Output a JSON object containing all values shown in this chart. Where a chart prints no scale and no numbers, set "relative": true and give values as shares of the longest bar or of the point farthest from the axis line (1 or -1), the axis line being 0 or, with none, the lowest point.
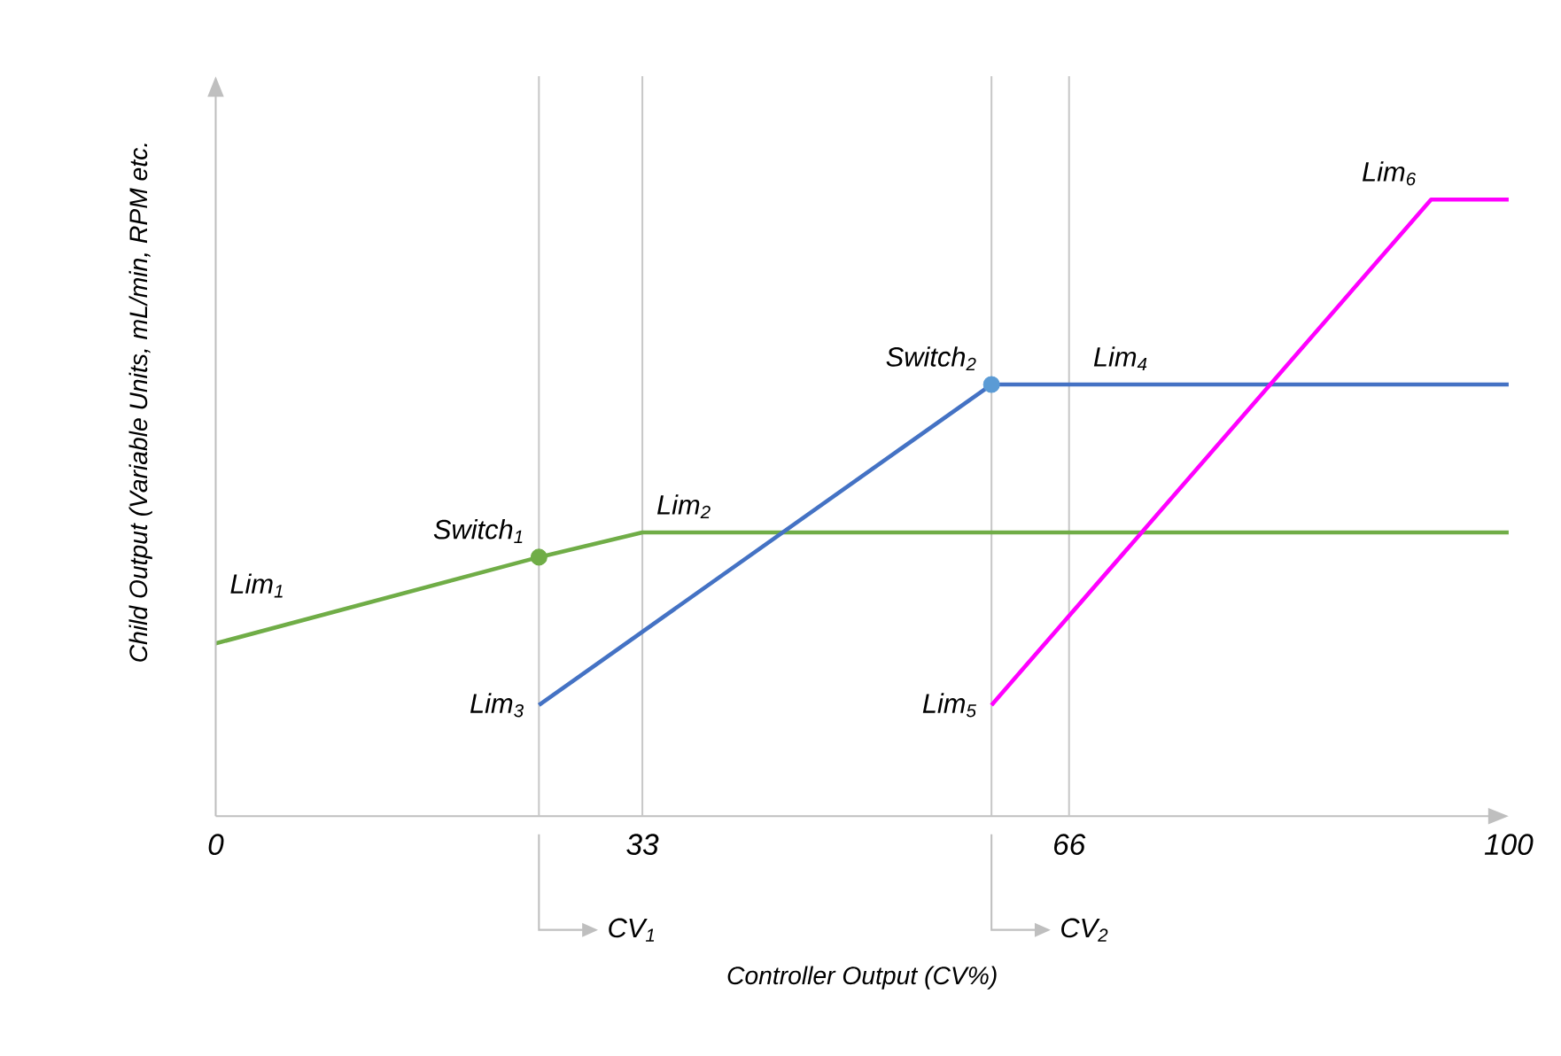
{
  "chart_data": {
    "type": "line",
    "relative": true,
    "xlabel": "Controller Output (CV%)",
    "ylabel": "Child Output (Variable Units, mL/min, RPM etc.",
    "xlim": [
      0,
      100
    ],
    "xticks": [
      0,
      33,
      66,
      100
    ],
    "tick_labels": "x",
    "grid": false,
    "series": [
      {
        "marker": "none",
        "color": "#70ad47",
        "x": [
          0,
          25,
          33,
          100
        ],
        "values": [
          0.28,
          0.42,
          0.46,
          0.46
        ]
      },
      {
        "marker": "none",
        "color": "#4472c4",
        "x": [
          25,
          60,
          100
        ],
        "values": [
          0.18,
          0.7,
          0.7
        ]
      },
      {
        "marker": "none",
        "color": "#ff00ff",
        "x": [
          60,
          94,
          100
        ],
        "values": [
          0.18,
          1,
          1
        ]
      },
      {
        "type": "scatter",
        "marker": "circle",
        "color": "#70ad47",
        "x": [
          25
        ],
        "values": [
          0.42
        ]
      },
      {
        "type": "scatter",
        "marker": "circle",
        "color": "#5b9bd5",
        "x": [
          60
        ],
        "values": [
          0.7
        ]
      }
    ],
    "ref_lines": [
      {
        "axis": "x",
        "value": 25,
        "color": "#c8c8c8"
      },
      {
        "axis": "x",
        "value": 33,
        "color": "#c8c8c8"
      },
      {
        "axis": "x",
        "value": 60,
        "color": "#c8c8c8"
      },
      {
        "axis": "x",
        "value": 66,
        "color": "#c8c8c8"
      }
    ],
    "annotations": [
      {
        "text": "Lim$_{1}$",
        "x": 0,
        "y": 0.28
      },
      {
        "text": "Switch$_{1}$",
        "x": 25,
        "y": 0.42
      },
      {
        "text": "Lim$_{2}$",
        "x": 33,
        "y": 0.46
      },
      {
        "text": "Lim$_{3}$",
        "x": 25,
        "y": 0.18
      },
      {
        "text": "Switch$_{2}$",
        "x": 60,
        "y": 0.7
      },
      {
        "text": "Lim$_{4}$",
        "x": 70,
        "y": 0.7
      },
      {
        "text": "Lim$_{5}$",
        "x": 60,
        "y": 0.18
      },
      {
        "text": "Lim$_{6}$",
        "x": 94,
        "y": 1
      },
      "CV$_{1}$",
      "CV$_{2}$"
    ]
  }
}
